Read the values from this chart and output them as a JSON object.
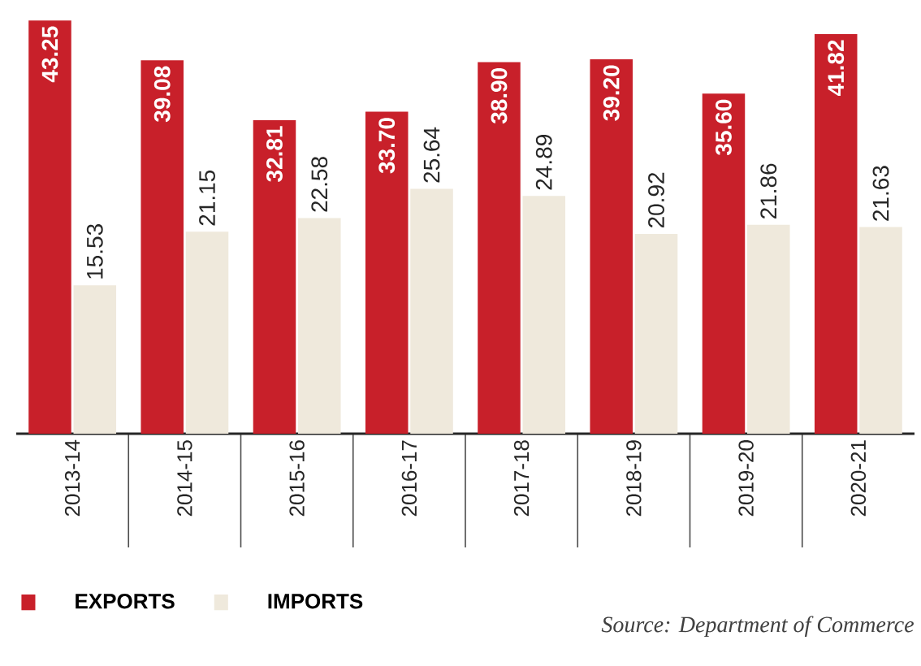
{
  "chart_data": {
    "type": "bar",
    "categories": [
      "2013-14",
      "2014-15",
      "2015-16",
      "2016-17",
      "2017-18",
      "2018-19",
      "2019-20",
      "2020-21"
    ],
    "series": [
      {
        "name": "EXPORTS",
        "color": "#c8202a",
        "values": [
          43.25,
          39.08,
          32.81,
          33.7,
          38.9,
          39.2,
          35.6,
          41.82
        ],
        "value_labels": [
          "43.25",
          "39.08",
          "32.81",
          "33.70",
          "38.90",
          "39.20",
          "35.60",
          "41.82"
        ]
      },
      {
        "name": "IMPORTS",
        "color": "#efe9dc",
        "values": [
          15.53,
          21.15,
          22.58,
          25.64,
          24.89,
          20.92,
          21.86,
          21.63
        ],
        "value_labels": [
          "15.53",
          "21.15",
          "22.58",
          "25.64",
          "24.89",
          "20.92",
          "21.86",
          "21.63"
        ]
      }
    ],
    "legend": "bottom left",
    "annotations": [
      "Source: Department of Commerce"
    ]
  }
}
